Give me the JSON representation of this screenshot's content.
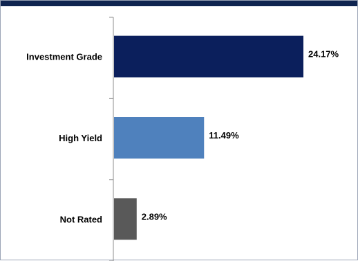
{
  "chart_data": {
    "type": "bar",
    "orientation": "horizontal",
    "categories": [
      "Investment Grade",
      "High Yield",
      "Not Rated"
    ],
    "values": [
      24.17,
      11.49,
      2.89
    ],
    "value_labels": [
      "24.17%",
      "11.49%",
      "2.89%"
    ],
    "colors": [
      "#0b1f5c",
      "#4f81bd",
      "#595959"
    ],
    "xlim": [
      0,
      30
    ],
    "title": "",
    "xlabel": "",
    "ylabel": "",
    "grid": false,
    "legend": "none"
  },
  "colors": {
    "header_bar": "#0f2450",
    "axis": "#8c8c8c"
  }
}
